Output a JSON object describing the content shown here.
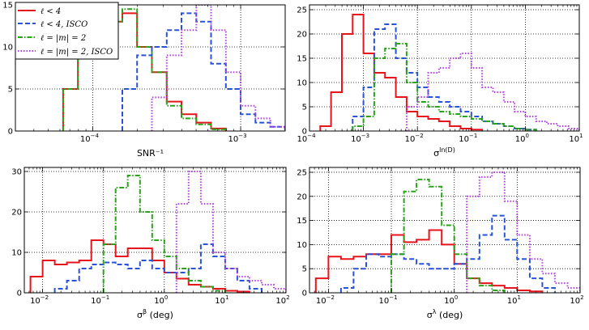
{
  "colors": {
    "red": "#e8141b",
    "blue": "#2a52d8",
    "green": "#2aa21a",
    "purple": "#b23ee6"
  },
  "legend": {
    "entries": [
      "ℓ < 4",
      "ℓ < 4, ISCO",
      "ℓ = |m| = 2",
      "ℓ = |m| = 2, ISCO"
    ]
  },
  "chart_data": [
    {
      "type": "histogram",
      "panel": "top-left",
      "xlabel": "SNR⁻¹",
      "xscale": "log",
      "xlim": [
        3e-05,
        0.002
      ],
      "ylim": [
        0,
        15
      ],
      "yticks": [
        0,
        5,
        10,
        15
      ],
      "xtick_labels": [
        {
          "exp": -4,
          "text": "10",
          "sup": "−4"
        },
        {
          "exp": -3,
          "text": "10",
          "sup": "−3"
        }
      ],
      "series": [
        {
          "name": "ℓ < 4",
          "color": "red",
          "style": "solid",
          "edges": [
            -4.2,
            -4.1,
            -4.0,
            -3.9,
            -3.8,
            -3.7,
            -3.6,
            -3.5,
            -3.4,
            -3.3,
            -3.2,
            -3.1
          ],
          "values": [
            5,
            9,
            12,
            13,
            14,
            10,
            7,
            3.5,
            2,
            1,
            0.3
          ]
        },
        {
          "name": "ℓ = |m| = 2",
          "color": "green",
          "style": "dashdot",
          "edges": [
            -4.2,
            -4.1,
            -4.0,
            -3.9,
            -3.8,
            -3.7,
            -3.6,
            -3.5,
            -3.4,
            -3.3,
            -3.2,
            -3.1
          ],
          "values": [
            5,
            9,
            12,
            13,
            14.5,
            10,
            7,
            3,
            1.5,
            0.8,
            0.2
          ]
        },
        {
          "name": "ℓ < 4, ISCO",
          "color": "blue",
          "style": "dashed",
          "edges": [
            -3.8,
            -3.7,
            -3.6,
            -3.5,
            -3.4,
            -3.3,
            -3.2,
            -3.1,
            -3.0,
            -2.9,
            -2.8,
            -2.7,
            -2.6
          ],
          "values": [
            5,
            9,
            10,
            12,
            14,
            13,
            8,
            5,
            2,
            1,
            0.5,
            0.2
          ]
        },
        {
          "name": "ℓ = |m| = 2, ISCO",
          "color": "purple",
          "style": "dotted",
          "edges": [
            -3.6,
            -3.5,
            -3.4,
            -3.3,
            -3.2,
            -3.1,
            -3.0,
            -2.9,
            -2.8,
            -2.7,
            -2.6
          ],
          "values": [
            4,
            9,
            12,
            15,
            12,
            7,
            3,
            1.5,
            0.5,
            0.2
          ]
        }
      ]
    },
    {
      "type": "histogram",
      "panel": "top-right",
      "xlabel": "σ",
      "xlabel_sup": "ln(D)",
      "xscale": "log",
      "xlim": [
        0.0001,
        10
      ],
      "ylim": [
        0,
        26
      ],
      "yticks": [
        0,
        5,
        10,
        15,
        20,
        25
      ],
      "xtick_labels": [
        {
          "exp": -4,
          "text": "10",
          "sup": "−4"
        },
        {
          "exp": -3,
          "text": "10",
          "sup": "−3"
        },
        {
          "exp": -2,
          "text": "10",
          "sup": "−2"
        },
        {
          "exp": -1,
          "text": "10",
          "sup": "−1"
        },
        {
          "exp": 0,
          "text": "10",
          "sup": "0"
        },
        {
          "exp": 1,
          "text": "10",
          "sup": "1"
        }
      ],
      "series": [
        {
          "name": "ℓ < 4",
          "color": "red",
          "style": "solid",
          "edges": [
            -3.8,
            -3.6,
            -3.4,
            -3.2,
            -3.0,
            -2.8,
            -2.6,
            -2.4,
            -2.2,
            -2.0,
            -1.8,
            -1.6,
            -1.4,
            -1.2,
            -1.0,
            -0.8
          ],
          "values": [
            1,
            8,
            20,
            24,
            16,
            12,
            11,
            7,
            4,
            3,
            2.5,
            2,
            1,
            0.5,
            0.3
          ]
        },
        {
          "name": "ℓ < 4, ISCO",
          "color": "blue",
          "style": "dashed",
          "edges": [
            -3.2,
            -3.0,
            -2.8,
            -2.6,
            -2.4,
            -2.2,
            -2.0,
            -1.8,
            -1.6,
            -1.4,
            -1.2,
            -1.0,
            -0.8,
            -0.6,
            -0.4,
            -0.2,
            0.0,
            0.2
          ],
          "values": [
            3,
            9,
            21,
            22,
            15,
            12,
            9,
            7,
            6,
            5,
            4,
            3,
            2,
            1.5,
            1,
            0.5,
            0.3
          ]
        },
        {
          "name": "ℓ = |m| = 2",
          "color": "green",
          "style": "dashdot",
          "edges": [
            -3.2,
            -3.0,
            -2.8,
            -2.6,
            -2.4,
            -2.2,
            -2.0,
            -1.8,
            -1.6,
            -1.4,
            -1.2,
            -1.0,
            -0.8,
            -0.6,
            -0.4,
            -0.2,
            0.0,
            0.2
          ],
          "values": [
            1,
            3,
            15,
            17,
            18,
            10,
            6,
            5,
            4,
            3.5,
            3,
            2.5,
            2,
            1.5,
            1,
            0.5,
            0.3
          ]
        },
        {
          "name": "ℓ = |m| = 2, ISCO",
          "color": "purple",
          "style": "dotted",
          "edges": [
            -2.2,
            -2.0,
            -1.8,
            -1.6,
            -1.4,
            -1.2,
            -1.0,
            -0.8,
            -0.6,
            -0.4,
            -0.2,
            0.0,
            0.2,
            0.4,
            0.6,
            0.8,
            1.0
          ],
          "values": [
            5,
            7,
            12,
            13,
            15,
            16,
            13,
            9,
            8,
            6,
            4,
            3,
            2,
            1.5,
            1,
            0.5
          ]
        }
      ]
    },
    {
      "type": "histogram",
      "panel": "bottom-left",
      "xlabel": "σ",
      "xlabel_sup": "β",
      "xlabel_suffix": " (deg)",
      "xscale": "log",
      "xlim": [
        0.005,
        100
      ],
      "ylim": [
        0,
        31
      ],
      "yticks": [
        0,
        10,
        20,
        30
      ],
      "xtick_labels": [
        {
          "exp": -2,
          "text": "10",
          "sup": "−2"
        },
        {
          "exp": -1,
          "text": "10",
          "sup": "−1"
        },
        {
          "exp": 0,
          "text": "10",
          "sup": "0"
        },
        {
          "exp": 1,
          "text": "10",
          "sup": "1"
        },
        {
          "exp": 2,
          "text": "10",
          "sup": "2"
        }
      ],
      "series": [
        {
          "name": "ℓ < 4",
          "color": "red",
          "style": "solid",
          "edges": [
            -2.2,
            -2.0,
            -1.8,
            -1.6,
            -1.4,
            -1.2,
            -1.0,
            -0.8,
            -0.6,
            -0.4,
            -0.2,
            0.0,
            0.2,
            0.4,
            0.6,
            0.8,
            1.0,
            1.2,
            1.4
          ],
          "values": [
            4,
            8,
            7,
            7.5,
            8,
            13,
            12,
            9,
            11,
            11,
            8,
            5,
            3.5,
            2,
            1.5,
            1,
            0.5,
            0.3
          ]
        },
        {
          "name": "ℓ < 4, ISCO",
          "color": "blue",
          "style": "dashed",
          "edges": [
            -1.8,
            -1.6,
            -1.4,
            -1.2,
            -1.0,
            -0.8,
            -0.6,
            -0.4,
            -0.2,
            0.0,
            0.2,
            0.4,
            0.6,
            0.8,
            1.0,
            1.2,
            1.4,
            1.6
          ],
          "values": [
            1,
            3,
            6,
            7,
            7.5,
            7,
            6,
            8,
            6,
            5,
            5,
            6,
            12,
            9,
            6,
            3,
            1
          ]
        },
        {
          "name": "ℓ = |m| = 2",
          "color": "green",
          "style": "dashdot",
          "edges": [
            -1.0,
            -0.8,
            -0.6,
            -0.4,
            -0.2,
            0.0,
            0.2,
            0.4,
            0.6,
            0.8,
            1.0
          ],
          "values": [
            12,
            26,
            29,
            20,
            13,
            9,
            6,
            3,
            1.5,
            0.5
          ]
        },
        {
          "name": "ℓ = |m| = 2, ISCO",
          "color": "purple",
          "style": "dotted",
          "edges": [
            0.2,
            0.4,
            0.6,
            0.8,
            1.0,
            1.2,
            1.4,
            1.6,
            1.8,
            2.0
          ],
          "values": [
            22,
            30,
            22,
            10,
            6,
            4,
            3,
            2,
            1
          ]
        }
      ]
    },
    {
      "type": "histogram",
      "panel": "bottom-right",
      "xlabel": "σ",
      "xlabel_sup": "λ",
      "xlabel_suffix": " (deg)",
      "xscale": "log",
      "xlim": [
        0.005,
        100
      ],
      "ylim": [
        0,
        26
      ],
      "yticks": [
        0,
        5,
        10,
        15,
        20,
        25
      ],
      "xtick_labels": [
        {
          "exp": -2,
          "text": "10",
          "sup": "−2"
        },
        {
          "exp": -1,
          "text": "10",
          "sup": "−1"
        },
        {
          "exp": 0,
          "text": "10",
          "sup": "0"
        },
        {
          "exp": 1,
          "text": "10",
          "sup": "1"
        },
        {
          "exp": 2,
          "text": "10",
          "sup": "2"
        }
      ],
      "series": [
        {
          "name": "ℓ < 4",
          "color": "red",
          "style": "solid",
          "edges": [
            -2.2,
            -2.0,
            -1.8,
            -1.6,
            -1.4,
            -1.2,
            -1.0,
            -0.8,
            -0.6,
            -0.4,
            -0.2,
            0.0,
            0.2,
            0.4,
            0.6,
            0.8,
            1.0,
            1.2,
            1.4
          ],
          "values": [
            3,
            7.5,
            7,
            7.5,
            8,
            8,
            12,
            10.5,
            11,
            13,
            10,
            6,
            3,
            2,
            1.5,
            1,
            0.5,
            0.3
          ]
        },
        {
          "name": "ℓ < 4, ISCO",
          "color": "blue",
          "style": "dashed",
          "edges": [
            -1.8,
            -1.6,
            -1.4,
            -1.2,
            -1.0,
            -0.8,
            -0.6,
            -0.4,
            -0.2,
            0.0,
            0.2,
            0.4,
            0.6,
            0.8,
            1.0,
            1.2,
            1.4,
            1.6
          ],
          "values": [
            1,
            5,
            8,
            7.5,
            8,
            7,
            6,
            5,
            5,
            6,
            7,
            12,
            16,
            11,
            7,
            3,
            1
          ]
        },
        {
          "name": "ℓ = |m| = 2",
          "color": "green",
          "style": "dashdot",
          "edges": [
            -1.0,
            -0.8,
            -0.6,
            -0.4,
            -0.2,
            0.0,
            0.2,
            0.4,
            0.6,
            0.8
          ],
          "values": [
            8,
            21,
            23.5,
            22,
            14,
            8,
            3,
            1.5,
            0.5
          ]
        },
        {
          "name": "ℓ = |m| = 2, ISCO",
          "color": "purple",
          "style": "dotted",
          "edges": [
            0.2,
            0.4,
            0.6,
            0.8,
            1.0,
            1.2,
            1.4,
            1.6,
            1.8,
            2.0
          ],
          "values": [
            20,
            24,
            25,
            19,
            12,
            7,
            4,
            2,
            1
          ]
        }
      ]
    }
  ]
}
